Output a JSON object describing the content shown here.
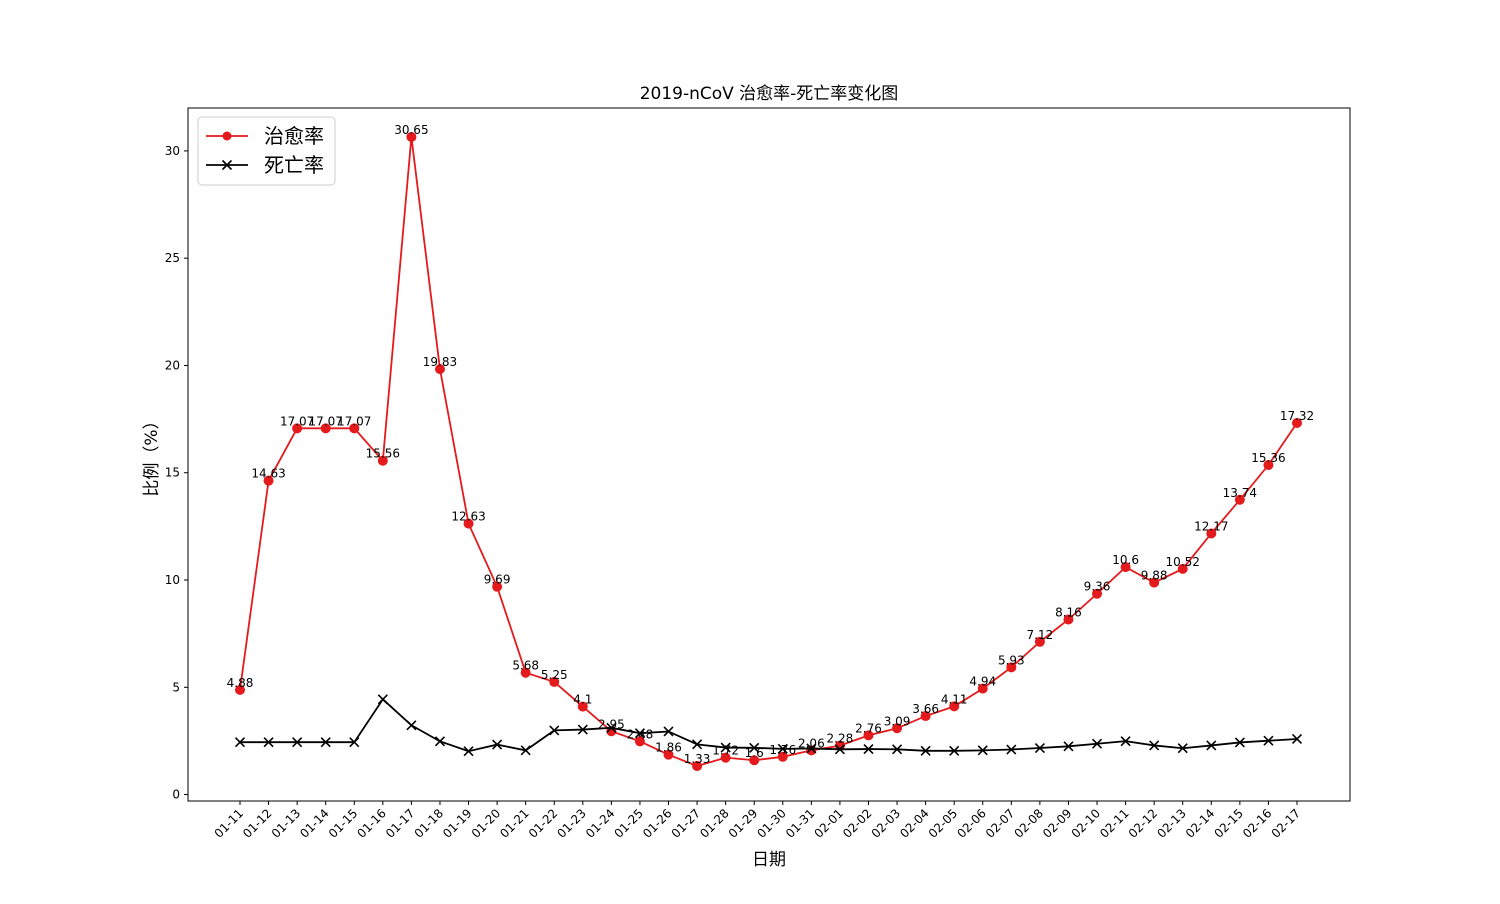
{
  "chart_data": {
    "type": "line",
    "title": "2019-nCoV 治愈率-死亡率变化图",
    "xlabel": "日期",
    "ylabel": "比例（%）",
    "ylim": [
      -0.3,
      32
    ],
    "yticks": [
      0,
      5,
      10,
      15,
      20,
      25,
      30
    ],
    "grid": false,
    "legend_position": "top-left",
    "categories": [
      "01-11",
      "01-12",
      "01-13",
      "01-14",
      "01-15",
      "01-16",
      "01-17",
      "01-18",
      "01-19",
      "01-20",
      "01-21",
      "01-22",
      "01-23",
      "01-24",
      "01-25",
      "01-26",
      "01-27",
      "01-28",
      "01-29",
      "01-30",
      "01-31",
      "02-01",
      "02-02",
      "02-03",
      "02-04",
      "02-05",
      "02-06",
      "02-07",
      "02-08",
      "02-09",
      "02-10",
      "02-11",
      "02-12",
      "02-13",
      "02-14",
      "02-15",
      "02-16",
      "02-17"
    ],
    "series": [
      {
        "name": "治愈率",
        "color": "#e41a1c",
        "marker": "circle",
        "values": [
          4.88,
          14.63,
          17.07,
          17.07,
          17.07,
          15.56,
          30.65,
          19.83,
          12.63,
          9.69,
          5.68,
          5.25,
          4.1,
          2.95,
          2.48,
          1.86,
          1.33,
          1.72,
          1.6,
          1.76,
          2.06,
          2.28,
          2.76,
          3.09,
          3.66,
          4.11,
          4.94,
          5.93,
          7.12,
          8.16,
          9.36,
          10.6,
          9.88,
          10.52,
          12.17,
          13.74,
          15.36,
          17.32
        ],
        "labels": [
          "4.88",
          "14.63",
          "17.07",
          "17.07",
          "17.07",
          "15.56",
          "30.65",
          "19.83",
          "12.63",
          "9.69",
          "5.68",
          "5.25",
          "4.1",
          "2.95",
          "2.48",
          "1.86",
          "1.33",
          "1.72",
          "1.6",
          "1.76",
          "2.06",
          "2.28",
          "2.76",
          "3.09",
          "3.66",
          "4.11",
          "4.94",
          "5.93",
          "7.12",
          "8.16",
          "9.36",
          "10.6",
          "9.88",
          "10.52",
          "12.17",
          "13.74",
          "15.36",
          "17.32"
        ]
      },
      {
        "name": "死亡率",
        "color": "#000000",
        "marker": "x",
        "values": [
          2.44,
          2.44,
          2.44,
          2.44,
          2.44,
          4.44,
          3.23,
          2.48,
          2.02,
          2.33,
          2.06,
          2.99,
          3.03,
          3.11,
          2.86,
          2.94,
          2.34,
          2.19,
          2.18,
          2.13,
          2.15,
          2.11,
          2.12,
          2.11,
          2.04,
          2.04,
          2.06,
          2.1,
          2.17,
          2.25,
          2.37,
          2.49,
          2.29,
          2.16,
          2.29,
          2.43,
          2.51,
          2.59
        ]
      }
    ]
  }
}
